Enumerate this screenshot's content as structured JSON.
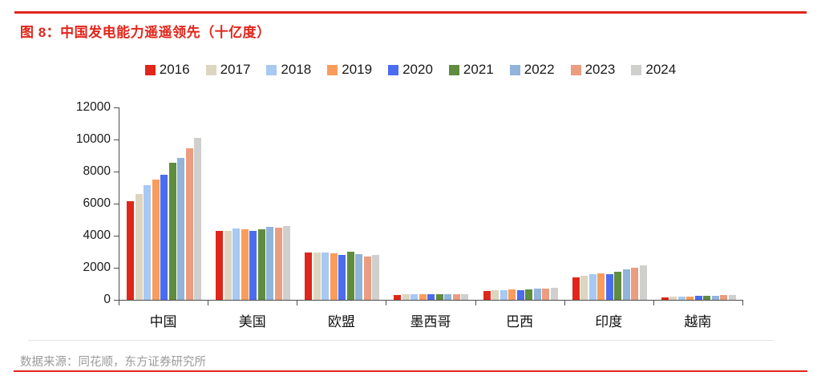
{
  "page": {
    "title": "图 8：中国发电能力遥遥领先（十亿度）",
    "source": "数据来源：同花顺，东方证券研究所",
    "accent_red": "#e1251b",
    "hairline_gray": "#e4e4e4"
  },
  "chart_data": {
    "type": "bar",
    "title": "图 8：中国发电能力遥遥领先（十亿度）",
    "unit": "十亿度",
    "categories": [
      "中国",
      "美国",
      "欧盟",
      "墨西哥",
      "巴西",
      "印度",
      "越南"
    ],
    "series": [
      {
        "name": "2016",
        "color": "#e0261a",
        "values": [
          6133,
          4322,
          2930,
          320,
          560,
          1400,
          175
        ]
      },
      {
        "name": "2017",
        "color": "#ddd5bf",
        "values": [
          6604,
          4281,
          2950,
          330,
          580,
          1510,
          190
        ]
      },
      {
        "name": "2018",
        "color": "#a7c9f2",
        "values": [
          7166,
          4457,
          2960,
          340,
          600,
          1620,
          210
        ]
      },
      {
        "name": "2019",
        "color": "#f99c5c",
        "values": [
          7503,
          4411,
          2880,
          345,
          630,
          1670,
          225
        ]
      },
      {
        "name": "2020",
        "color": "#4b6cf0",
        "values": [
          7779,
          4286,
          2780,
          335,
          620,
          1600,
          235
        ]
      },
      {
        "name": "2021",
        "color": "#5f8c3f",
        "values": [
          8534,
          4406,
          2980,
          345,
          660,
          1750,
          245
        ]
      },
      {
        "name": "2022",
        "color": "#90b4da",
        "values": [
          8849,
          4547,
          2850,
          350,
          680,
          1880,
          260
        ]
      },
      {
        "name": "2023",
        "color": "#ec9c7f",
        "values": [
          9456,
          4494,
          2720,
          355,
          710,
          2010,
          280
        ]
      },
      {
        "name": "2024",
        "color": "#cfcfce",
        "values": [
          10087,
          4613,
          2800,
          360,
          740,
          2130,
          310
        ]
      }
    ],
    "ylim": [
      0,
      12000
    ],
    "yticks": [
      0,
      2000,
      4000,
      6000,
      8000,
      10000,
      12000
    ],
    "grid": false,
    "legend_position": "top"
  }
}
